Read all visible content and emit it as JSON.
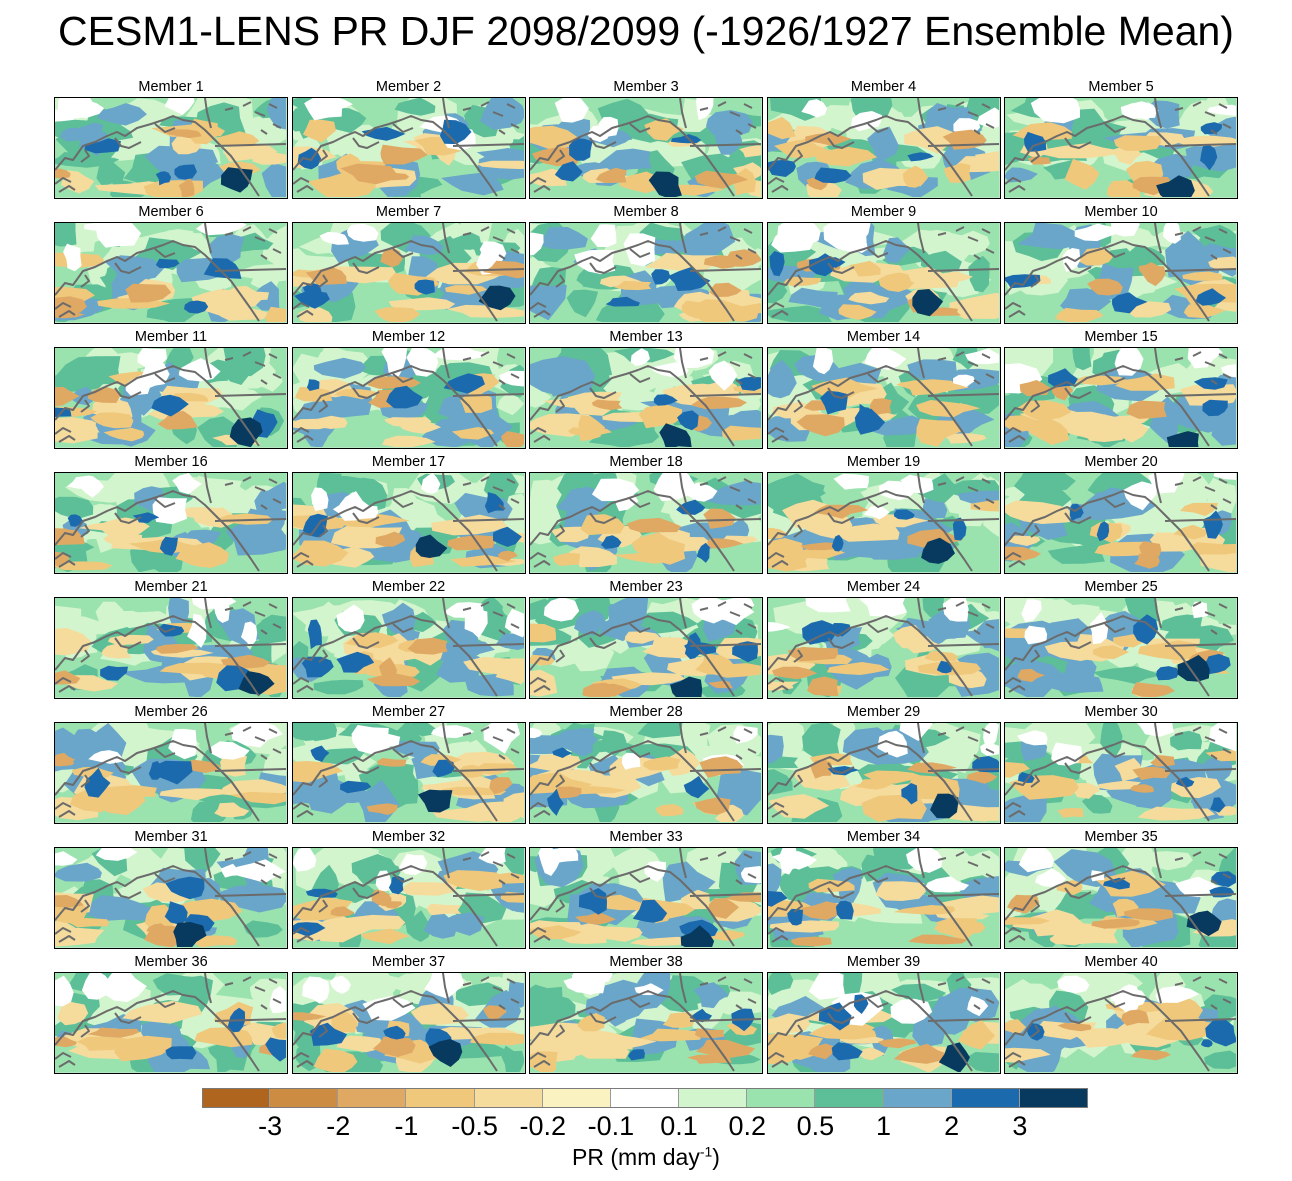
{
  "title": "CESM1-LENS PR DJF 2098/2099 (-1926/1927 Ensemble Mean)",
  "panels": [
    "Member 1",
    "Member 2",
    "Member 3",
    "Member 4",
    "Member 5",
    "Member 6",
    "Member 7",
    "Member 8",
    "Member 9",
    "Member 10",
    "Member 11",
    "Member 12",
    "Member 13",
    "Member 14",
    "Member 15",
    "Member 16",
    "Member 17",
    "Member 18",
    "Member 19",
    "Member 20",
    "Member 21",
    "Member 22",
    "Member 23",
    "Member 24",
    "Member 25",
    "Member 26",
    "Member 27",
    "Member 28",
    "Member 29",
    "Member 30",
    "Member 31",
    "Member 32",
    "Member 33",
    "Member 34",
    "Member 35",
    "Member 36",
    "Member 37",
    "Member 38",
    "Member 39",
    "Member 40"
  ],
  "colorbar": {
    "colors": [
      "#b0651f",
      "#cc8c42",
      "#dfa964",
      "#efc87c",
      "#f5dc9d",
      "#fbf2c2",
      "#ffffff",
      "#d3f5cd",
      "#9be3ae",
      "#5cbf98",
      "#6aa6c9",
      "#1c6aae",
      "#073a5e"
    ],
    "ticks": [
      "-3",
      "-2",
      "-1",
      "-0.5",
      "-0.2",
      "-0.1",
      "0.1",
      "0.2",
      "0.5",
      "1",
      "2",
      "3"
    ],
    "label_main": "PR (mm day",
    "label_sup": "-1",
    "label_end": ")"
  },
  "coastline_color": "#6b6b6b"
}
